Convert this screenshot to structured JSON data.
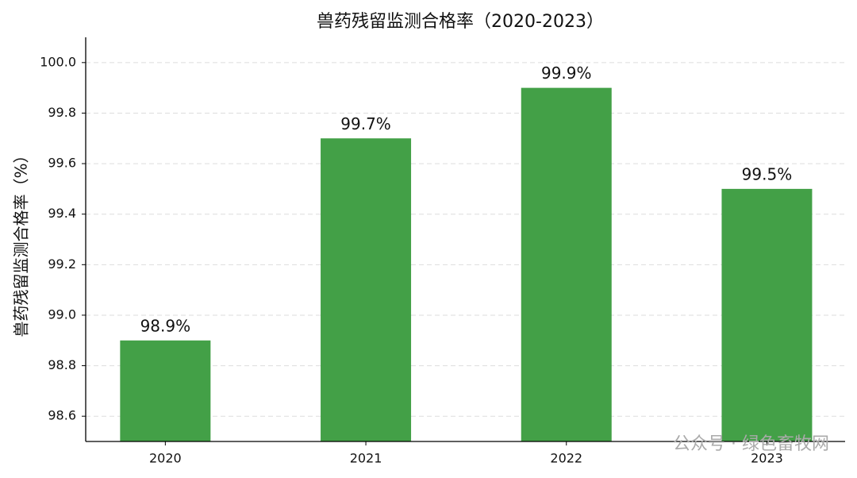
{
  "chart_data": {
    "type": "bar",
    "title": "兽药残留监测合格率（2020-2023）",
    "y_label": "兽药残留监测合格率（%）",
    "categories": [
      "2020",
      "2021",
      "2022",
      "2023"
    ],
    "values": [
      98.9,
      99.7,
      99.9,
      99.5
    ],
    "value_labels": [
      "98.9%",
      "99.7%",
      "99.9%",
      "99.5%"
    ],
    "color": "#43a047",
    "ylim": [
      98.5,
      100.1
    ],
    "yticks": [
      98.6,
      98.8,
      {
        "value": 99.0,
        "label": "99.0"
      },
      99.2,
      99.4,
      99.6,
      99.8,
      {
        "value": 100.0,
        "label": "100.0"
      }
    ],
    "grid": true,
    "watermark": "公众号 · 绿色畜牧网"
  }
}
